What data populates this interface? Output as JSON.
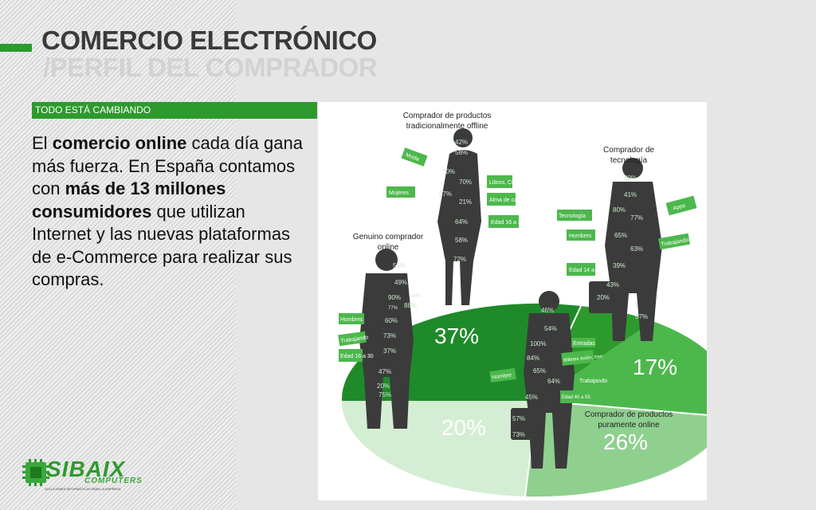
{
  "colors": {
    "accent": "#2d9a2d",
    "dark_green": "#1f8a2a",
    "mid_green": "#4cb84c",
    "light_green": "#bfe6bf",
    "figure": "#3b3b3b"
  },
  "header": {
    "title": "COMERCIO ELECTRÓNICO",
    "subtitle": "/PERFIL DEL COMPRADOR"
  },
  "section_tag": "TODO ESTÁ CAMBIANDO",
  "body": {
    "p1": "El ",
    "p1_bold": "comercio online",
    "p2": " cada día gana más fuerza. En España contamos con ",
    "p2_bold": "más de 13 millones consumidores",
    "p3": " que utilizan Internet y las nuevas plataformas de e-Commerce para realizar sus compras."
  },
  "infographic": {
    "segments": [
      {
        "label": "Genuino comprador online",
        "value": "37%"
      },
      {
        "label": "Comprador de productos tradicionalmente offline",
        "value": "20%"
      },
      {
        "label": "Comprador de tecnología",
        "value": "17%"
      },
      {
        "label": "Comprador de productos puramente online",
        "value": "26%"
      }
    ],
    "offline": {
      "title_line1": "Comprador de productos",
      "title_line2": "tradicionalmente offline",
      "tags": [
        "Moda",
        "Mujeres",
        "Libros, CD",
        "Alma de casa",
        "Edad 16 a 30"
      ],
      "stats": [
        "42%",
        "58%",
        "70%",
        "70%",
        "57%",
        "21%",
        "64%",
        "58%",
        "72%"
      ]
    },
    "tech": {
      "title_line1": "Comprador de",
      "title_line2": "tecnología",
      "tags": [
        "Apps",
        "Tecnología",
        "Hombres",
        "Trabajando",
        "Edad 14 a 45"
      ],
      "stats": [
        "60%",
        "41%",
        "80%",
        "77%",
        "65%",
        "63%",
        "39%",
        "43%",
        "20%",
        "67%"
      ]
    },
    "genuine": {
      "title_line1": "Genuino comprador",
      "title_line2": "online",
      "tags": [
        "Hombres",
        "Trabajando",
        "Edad 16 a 30"
      ],
      "stats": [
        "51%",
        "49%",
        "90%",
        "84%",
        "88%",
        "77%",
        "60%",
        "73%",
        "37%",
        "47%",
        "20%",
        "75%"
      ]
    },
    "pure": {
      "title_line1": "Comprador de productos",
      "title_line2": "puramente online",
      "tags": [
        "Entradas",
        "Billetes avión, tren",
        "Hombre",
        "Trabajando",
        "Edad 40 a 55"
      ],
      "stats": [
        "46%",
        "54%",
        "100%",
        "84%",
        "65%",
        "64%",
        "45%",
        "57%",
        "73%"
      ]
    }
  },
  "logo": {
    "word": "SIBAIX",
    "sub": "COMPUTERS",
    "tagline": "SOLUCIONES INFORMÁTICAS PARA LA EMPRESA"
  }
}
